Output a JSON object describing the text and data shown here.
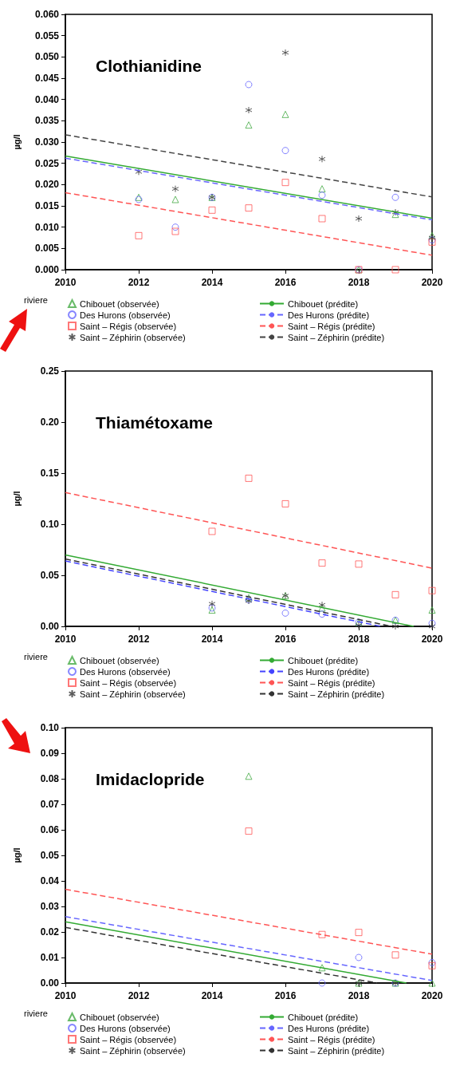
{
  "chart_data": [
    {
      "type": "scatter",
      "title": "Clothianidine",
      "ylabel": "µg/l",
      "legend_title": "riviere",
      "legend": "bottom",
      "line_style": "dashed",
      "xlim": [
        2010,
        2020
      ],
      "xticks": [
        2010,
        2012,
        2014,
        2016,
        2018,
        2020
      ],
      "ylim": [
        0,
        0.06
      ],
      "yticks": [
        {
          "value": 0,
          "label": "0.000"
        },
        0.005,
        {
          "value": 0.01,
          "label": "0.010"
        },
        0.015,
        {
          "value": 0.02,
          "label": "0.020"
        },
        0.025,
        {
          "value": 0.03,
          "label": "0.030"
        },
        0.035,
        {
          "value": 0.04,
          "label": "0.040"
        },
        0.045,
        {
          "value": 0.05,
          "label": "0.050"
        },
        0.055,
        {
          "value": 0.06,
          "label": "0.060"
        }
      ],
      "series": [
        {
          "name": "Chibouet (observée)",
          "type": "scatter",
          "marker": "triangle",
          "color": "#44aa44",
          "x": [
            2012,
            2013,
            2014,
            2015,
            2016,
            2017,
            2018,
            2019,
            2020
          ],
          "values": [
            0.017,
            0.0165,
            0.017,
            0.034,
            0.0365,
            0.019,
            0,
            0.013,
            0.008
          ]
        },
        {
          "name": "Des Hurons (observée)",
          "type": "scatter",
          "marker": "circle",
          "color": "#6666ff",
          "x": [
            2012,
            2013,
            2014,
            2015,
            2016,
            2017,
            2018,
            2019,
            2020
          ],
          "values": [
            0.0165,
            0.01,
            0.017,
            0.0435,
            0.028,
            0.0175,
            0,
            0.017,
            0.007
          ]
        },
        {
          "name": "Saint – Régis (observée)",
          "type": "scatter",
          "marker": "square",
          "color": "#ff5555",
          "x": [
            2012,
            2013,
            2014,
            2015,
            2016,
            2017,
            2018,
            2019,
            2020
          ],
          "values": [
            0.008,
            0.009,
            0.014,
            0.0145,
            0.0205,
            0.012,
            0,
            0,
            0.0065
          ]
        },
        {
          "name": "Saint – Zéphirin (observée)",
          "type": "scatter",
          "marker": "cross",
          "color": "#333333",
          "x": [
            2012,
            2013,
            2014,
            2015,
            2016,
            2017,
            2018,
            2019,
            2020
          ],
          "values": [
            0.023,
            0.019,
            0.017,
            0.0375,
            0.051,
            0.026,
            0.012,
            0.0135,
            0.0075
          ]
        },
        {
          "name": "Chibouet (prédite)",
          "type": "line",
          "line_style": "solid",
          "color": "#33aa33",
          "x": [
            2010,
            2020
          ],
          "values": [
            0.0267,
            0.0121
          ]
        },
        {
          "name": "Des Hurons (prédite)",
          "type": "line",
          "color": "#6666ff",
          "x": [
            2010,
            2020
          ],
          "values": [
            0.0262,
            0.0117
          ]
        },
        {
          "name": "Saint – Régis (prédite)",
          "type": "line",
          "color": "#ff5555",
          "x": [
            2010,
            2020
          ],
          "values": [
            0.0181,
            0.0034
          ]
        },
        {
          "name": "Saint – Zéphirin (prédite)",
          "type": "line",
          "color": "#444444",
          "x": [
            2010,
            2020
          ],
          "values": [
            0.0317,
            0.0171
          ]
        }
      ]
    },
    {
      "type": "scatter",
      "title": "Thiamétoxame",
      "ylabel": "µg/l",
      "legend_title": "riviere",
      "legend": "bottom",
      "line_style": "dashed",
      "xlim": [
        2010,
        2020
      ],
      "xticks": [
        2010,
        2012,
        2014,
        2016,
        2018,
        2020
      ],
      "ylim": [
        0,
        0.25
      ],
      "yticks": [
        {
          "value": 0,
          "label": "0.00"
        },
        0.05,
        {
          "value": 0.1,
          "label": "0.10"
        },
        0.15,
        {
          "value": 0.2,
          "label": "0.20"
        },
        0.25
      ],
      "series": [
        {
          "name": "Chibouet (observée)",
          "type": "scatter",
          "marker": "triangle",
          "color": "#44aa44",
          "x": [
            2014,
            2015,
            2016,
            2017,
            2018,
            2019,
            2020
          ],
          "values": [
            0.016,
            0.028,
            0.03,
            0.018,
            0.004,
            0.006,
            0.016
          ]
        },
        {
          "name": "Des Hurons (observée)",
          "type": "scatter",
          "marker": "circle",
          "color": "#6666ff",
          "x": [
            2014,
            2015,
            2016,
            2017,
            2018,
            2019,
            2020
          ],
          "values": [
            0.018,
            0.026,
            0.013,
            0.012,
            0.004,
            0.006,
            0.003
          ]
        },
        {
          "name": "Saint – Régis (observée)",
          "type": "scatter",
          "marker": "square",
          "color": "#ff5555",
          "x": [
            2014,
            2015,
            2016,
            2017,
            2018,
            2019,
            2020
          ],
          "values": [
            0.093,
            0.145,
            0.12,
            0.062,
            0.061,
            0.031,
            0.035
          ]
        },
        {
          "name": "Saint – Zéphirin (observée)",
          "type": "scatter",
          "marker": "cross",
          "color": "#333333",
          "x": [
            2014,
            2015,
            2016,
            2017,
            2018,
            2019,
            2020
          ],
          "values": [
            0.022,
            0.025,
            0.03,
            0.021,
            0.001,
            0,
            0
          ]
        },
        {
          "name": "Chibouet (prédite)",
          "type": "line",
          "line_style": "solid",
          "color": "#33aa33",
          "x": [
            2010,
            2019.5
          ],
          "values": [
            0.07,
            0
          ]
        },
        {
          "name": "Des Hurons (prédite)",
          "type": "line",
          "color": "#4444ff",
          "x": [
            2010,
            2018.6
          ],
          "values": [
            0.064,
            0
          ]
        },
        {
          "name": "Saint – Régis (prédite)",
          "type": "line",
          "color": "#ff5555",
          "x": [
            2010,
            2020
          ],
          "values": [
            0.131,
            0.057
          ]
        },
        {
          "name": "Saint – Zéphirin (prédite)",
          "type": "line",
          "color": "#333333",
          "x": [
            2010,
            2018.9
          ],
          "values": [
            0.066,
            0
          ]
        }
      ]
    },
    {
      "type": "scatter",
      "title": "Imidaclopride",
      "ylabel": "µg/l",
      "legend_title": "riviere",
      "legend": "bottom",
      "line_style": "dashed",
      "xlim": [
        2010,
        2020
      ],
      "xticks": [
        2010,
        2012,
        2014,
        2016,
        2018,
        2020
      ],
      "ylim": [
        0,
        0.1
      ],
      "yticks": [
        {
          "value": 0,
          "label": "0.00"
        },
        0.01,
        0.02,
        0.03,
        0.04,
        0.05,
        0.06,
        0.07,
        0.08,
        0.09,
        {
          "value": 0.1,
          "label": "0.10"
        }
      ],
      "series": [
        {
          "name": "Chibouet (observée)",
          "type": "scatter",
          "marker": "triangle",
          "color": "#44aa44",
          "x": [
            2015,
            2017,
            2018,
            2019,
            2020
          ],
          "values": [
            0.081,
            0.006,
            0,
            0,
            0
          ]
        },
        {
          "name": "Des Hurons (observée)",
          "type": "scatter",
          "marker": "circle",
          "color": "#6666ff",
          "x": [
            2017,
            2018,
            2019,
            2020
          ],
          "values": [
            0,
            0.01,
            0,
            0.008
          ]
        },
        {
          "name": "Saint – Régis (observée)",
          "type": "scatter",
          "marker": "square",
          "color": "#ff5555",
          "x": [
            2015,
            2017,
            2018,
            2019,
            2020
          ],
          "values": [
            0.0595,
            0.019,
            0.0198,
            0.011,
            0.0068
          ]
        },
        {
          "name": "Saint – Zéphirin (observée)",
          "type": "scatter",
          "marker": "cross",
          "color": "#333333",
          "x": [
            2018,
            2019
          ],
          "values": [
            0,
            0
          ]
        },
        {
          "name": "Chibouet (prédite)",
          "type": "line",
          "line_style": "solid",
          "color": "#33aa33",
          "x": [
            2010,
            2019.3
          ],
          "values": [
            0.024,
            0
          ]
        },
        {
          "name": "Des Hurons (prédite)",
          "type": "line",
          "color": "#6666ff",
          "x": [
            2010,
            2020
          ],
          "values": [
            0.026,
            0.001
          ]
        },
        {
          "name": "Saint – Régis (prédite)",
          "type": "line",
          "color": "#ff5555",
          "x": [
            2010,
            2020
          ],
          "values": [
            0.0367,
            0.0113
          ]
        },
        {
          "name": "Saint – Zéphirin (prédite)",
          "type": "line",
          "color": "#333333",
          "x": [
            2010,
            2018.5
          ],
          "values": [
            0.0218,
            0
          ]
        }
      ]
    }
  ]
}
